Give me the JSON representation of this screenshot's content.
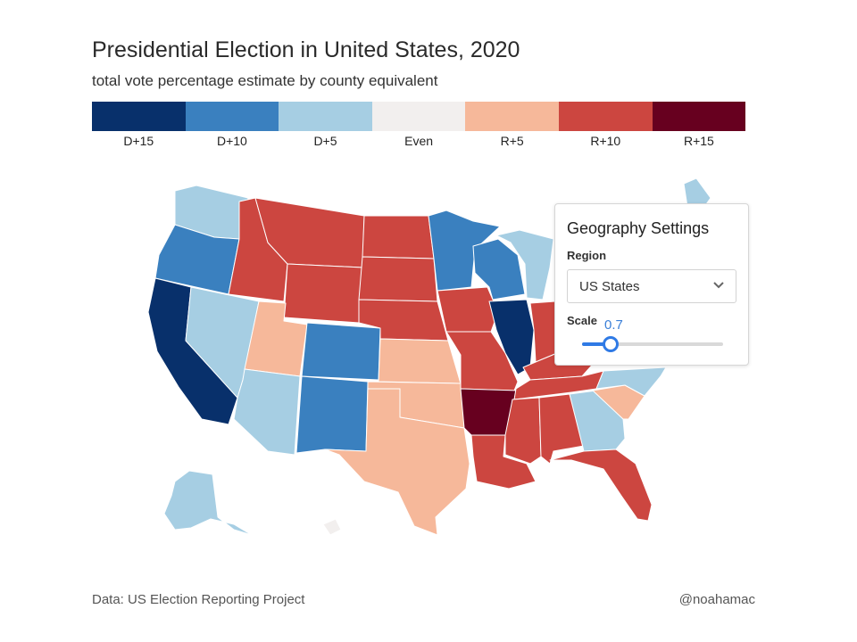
{
  "title": "Presidential Election in United States, 2020",
  "subtitle": "total vote percentage estimate by county equivalent",
  "legend": [
    {
      "label": "D+15",
      "color": "#08306b"
    },
    {
      "label": "D+10",
      "color": "#3a80bf"
    },
    {
      "label": "D+5",
      "color": "#a6cee3"
    },
    {
      "label": "Even",
      "color": "#f2efee"
    },
    {
      "label": "R+5",
      "color": "#f6b89a"
    },
    {
      "label": "R+10",
      "color": "#cc4640"
    },
    {
      "label": "R+15",
      "color": "#67001f"
    }
  ],
  "settings": {
    "title": "Geography Settings",
    "region_label": "Region",
    "region_value": "US States",
    "scale_label": "Scale",
    "scale_value": "0.7",
    "scale_fraction": 0.2
  },
  "footer": {
    "source": "Data: US Election Reporting Project",
    "credit": "@noahamac"
  },
  "states": [
    {
      "name": "WA",
      "rating": "D+5"
    },
    {
      "name": "OR",
      "rating": "D+10"
    },
    {
      "name": "CA",
      "rating": "D+15"
    },
    {
      "name": "NV",
      "rating": "D+5"
    },
    {
      "name": "ID",
      "rating": "R+10"
    },
    {
      "name": "MT",
      "rating": "R+10"
    },
    {
      "name": "WY",
      "rating": "R+10"
    },
    {
      "name": "UT",
      "rating": "R+5"
    },
    {
      "name": "AZ",
      "rating": "D+5"
    },
    {
      "name": "CO",
      "rating": "D+10"
    },
    {
      "name": "NM",
      "rating": "D+10"
    },
    {
      "name": "ND",
      "rating": "R+10"
    },
    {
      "name": "SD",
      "rating": "R+10"
    },
    {
      "name": "NE",
      "rating": "R+10"
    },
    {
      "name": "KS",
      "rating": "R+5"
    },
    {
      "name": "OK",
      "rating": "R+5"
    },
    {
      "name": "TX",
      "rating": "R+5"
    },
    {
      "name": "MN",
      "rating": "D+10"
    },
    {
      "name": "IA",
      "rating": "R+10"
    },
    {
      "name": "MO",
      "rating": "R+10"
    },
    {
      "name": "AR",
      "rating": "R+15"
    },
    {
      "name": "LA",
      "rating": "R+10"
    },
    {
      "name": "WI",
      "rating": "D+10"
    },
    {
      "name": "IL",
      "rating": "D+15"
    },
    {
      "name": "MI",
      "rating": "D+5"
    },
    {
      "name": "IN",
      "rating": "R+10"
    },
    {
      "name": "KY",
      "rating": "R+10"
    },
    {
      "name": "TN",
      "rating": "R+10"
    },
    {
      "name": "MS",
      "rating": "R+10"
    },
    {
      "name": "AL",
      "rating": "R+10"
    },
    {
      "name": "GA",
      "rating": "D+5"
    },
    {
      "name": "FL",
      "rating": "R+10"
    },
    {
      "name": "SC",
      "rating": "R+5"
    },
    {
      "name": "NC",
      "rating": "D+5"
    },
    {
      "name": "ME",
      "rating": "D+5"
    },
    {
      "name": "AK",
      "rating": "D+5"
    },
    {
      "name": "HI",
      "rating": "Even"
    }
  ]
}
